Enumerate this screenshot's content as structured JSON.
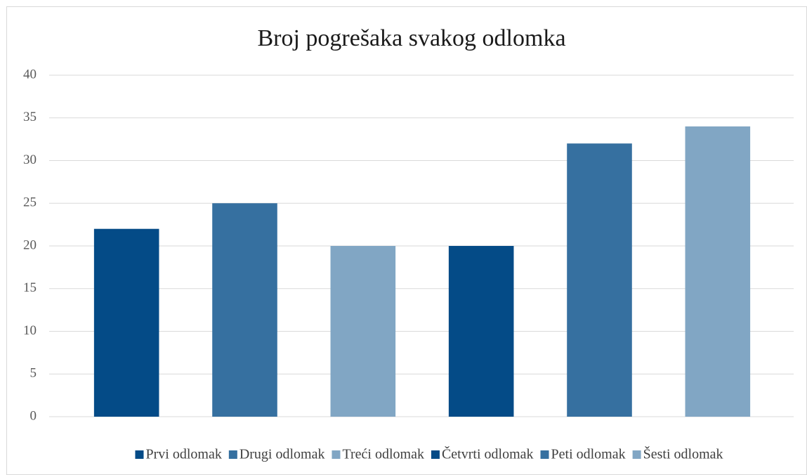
{
  "chart_data": {
    "type": "bar",
    "title": "Broj pogrešaka svakog odlomka",
    "categories": [
      "Prvi odlomak",
      "Drugi odlomak",
      "Treći odlomak",
      "Četvrti odlomak",
      "Peti odlomak",
      "Šesti odlomak"
    ],
    "values": [
      22,
      25,
      20,
      20,
      32,
      34
    ],
    "colors": [
      "#044b87",
      "#3670a0",
      "#81a6c4",
      "#044b87",
      "#3670a0",
      "#81a6c4"
    ],
    "ylim": [
      0,
      40
    ],
    "yticks": [
      0,
      5,
      10,
      15,
      20,
      25,
      30,
      35,
      40
    ],
    "grid": true,
    "legend": "bottom"
  }
}
